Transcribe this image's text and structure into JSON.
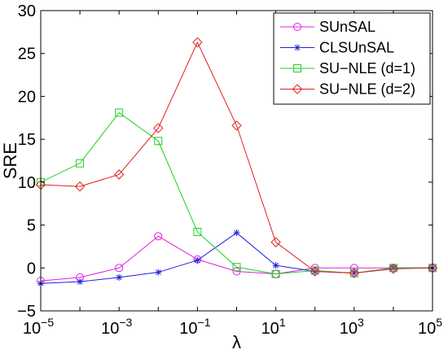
{
  "chart_data": {
    "type": "line",
    "title": "",
    "xlabel": "λ",
    "ylabel": "SRE",
    "x_scale": "log",
    "x": [
      1e-05,
      0.0001,
      0.001,
      0.01,
      0.1,
      1,
      10,
      100,
      1000,
      10000,
      100000
    ],
    "x_ticks": [
      {
        "value": 1e-05,
        "base": "10",
        "exp": "−5"
      },
      {
        "value": 0.001,
        "base": "10",
        "exp": "−3"
      },
      {
        "value": 0.1,
        "base": "10",
        "exp": "−1"
      },
      {
        "value": 10,
        "base": "10",
        "exp": "1"
      },
      {
        "value": 1000,
        "base": "10",
        "exp": "3"
      },
      {
        "value": 100000,
        "base": "10",
        "exp": "5"
      }
    ],
    "xlim": [
      1e-05,
      100000
    ],
    "ylim": [
      -5,
      30
    ],
    "y_ticks": [
      {
        "value": -5,
        "label": "−5"
      },
      {
        "value": 0,
        "label": "0"
      },
      {
        "value": 5,
        "label": "5"
      },
      {
        "value": 10,
        "label": "10"
      },
      {
        "value": 15,
        "label": "15"
      },
      {
        "value": 20,
        "label": "20"
      },
      {
        "value": 25,
        "label": "25"
      },
      {
        "value": 30,
        "label": "30"
      }
    ],
    "grid": false,
    "legend_position": "top-right",
    "series": [
      {
        "name": "SUnSAL",
        "color": "#e020e0",
        "marker": "circle",
        "values": [
          -1.5,
          -1.1,
          0.0,
          3.7,
          1.0,
          -0.4,
          -0.7,
          0.0,
          0.0,
          0.0,
          0.0
        ]
      },
      {
        "name": "CLSUnSAL",
        "color": "#2020e0",
        "marker": "star",
        "values": [
          -1.8,
          -1.6,
          -1.1,
          -0.5,
          0.9,
          4.1,
          0.3,
          -0.4,
          -0.6,
          0.0,
          0.0
        ]
      },
      {
        "name": "SU−NLE (d=1)",
        "color": "#20d020",
        "marker": "square",
        "values": [
          10.0,
          12.2,
          18.1,
          14.8,
          4.2,
          0.1,
          -0.7,
          -0.3,
          -0.6,
          0.0,
          0.0
        ]
      },
      {
        "name": "SU−NLE (d=2)",
        "color": "#e02020",
        "marker": "diamond",
        "values": [
          9.7,
          9.5,
          10.9,
          16.3,
          26.3,
          16.6,
          3.0,
          -0.4,
          -0.6,
          -0.1,
          0.0
        ]
      }
    ]
  }
}
